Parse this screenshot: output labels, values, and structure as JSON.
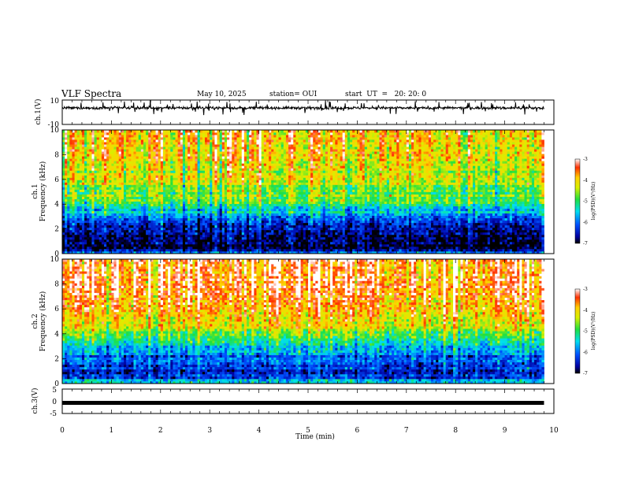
{
  "header": {
    "title": "VLF Spectra",
    "date": "May 10, 2025",
    "station": "station= OUI",
    "start": "start  UT  =   20: 20: 0"
  },
  "chart_data": [
    {
      "type": "line",
      "panel": "ch1-waveform",
      "ylabel": "ch.1(V)",
      "ylim": [
        -10,
        10
      ],
      "yticks": [
        10,
        -10
      ],
      "xlim": [
        0,
        10
      ],
      "series": [
        {
          "baseline": 3.5,
          "noise_range": [
            1.5,
            5.5
          ],
          "x_end": 9.8
        }
      ]
    },
    {
      "type": "heatmap",
      "panel": "ch1-spectrogram",
      "ylabel_lines": [
        "ch.1",
        "Frequency (kHz)"
      ],
      "ylim": [
        0,
        10
      ],
      "yticks": [
        0,
        2,
        4,
        6,
        8,
        10
      ],
      "xlim": [
        0,
        10
      ],
      "x_end": 9.8,
      "zlim": [
        -7,
        -3
      ],
      "colorbar_label": "log(PSD)(V²/Hz)",
      "colorbar_ticks": [
        "-3",
        "-4",
        "-5",
        "-6",
        "-7"
      ],
      "spectral_profile_kHz": [
        [
          0,
          -5.5
        ],
        [
          0.3,
          -6.8
        ],
        [
          1.5,
          -6.9
        ],
        [
          2.5,
          -6.3
        ],
        [
          3.5,
          -5.4
        ],
        [
          4.5,
          -4.8
        ],
        [
          6,
          -4.4
        ],
        [
          8,
          -4.1
        ],
        [
          10,
          -3.9
        ]
      ]
    },
    {
      "type": "heatmap",
      "panel": "ch2-spectrogram",
      "ylabel_lines": [
        "ch.2",
        "Frequency (kHz)"
      ],
      "ylim": [
        0,
        10
      ],
      "yticks": [
        0,
        2,
        4,
        6,
        8,
        10
      ],
      "xlim": [
        0,
        10
      ],
      "x_end": 9.8,
      "zlim": [
        -7,
        -3
      ],
      "colorbar_label": "log(PSD)(V²/Hz)",
      "colorbar_ticks": [
        "-3",
        "-4",
        "-5",
        "-6",
        "-7"
      ],
      "spectral_profile_kHz": [
        [
          0,
          -5.3
        ],
        [
          0.5,
          -6.2
        ],
        [
          1.5,
          -6.4
        ],
        [
          2.5,
          -5.8
        ],
        [
          3.5,
          -5.3
        ],
        [
          4.5,
          -4.3
        ],
        [
          6,
          -3.8
        ],
        [
          8,
          -3.5
        ],
        [
          10,
          -3.4
        ]
      ]
    },
    {
      "type": "line",
      "panel": "ch3-waveform",
      "ylabel": "ch.3(V)",
      "ylim": [
        -5,
        5
      ],
      "yticks": [
        5,
        0,
        -5
      ],
      "xlim": [
        0,
        10
      ],
      "series": [
        {
          "baseline": -1,
          "x_end": 9.8
        }
      ]
    }
  ],
  "xaxis": {
    "label": "Time (min)",
    "ticks": [
      "0",
      "1",
      "2",
      "3",
      "4",
      "5",
      "6",
      "7",
      "8",
      "9",
      "10"
    ]
  }
}
